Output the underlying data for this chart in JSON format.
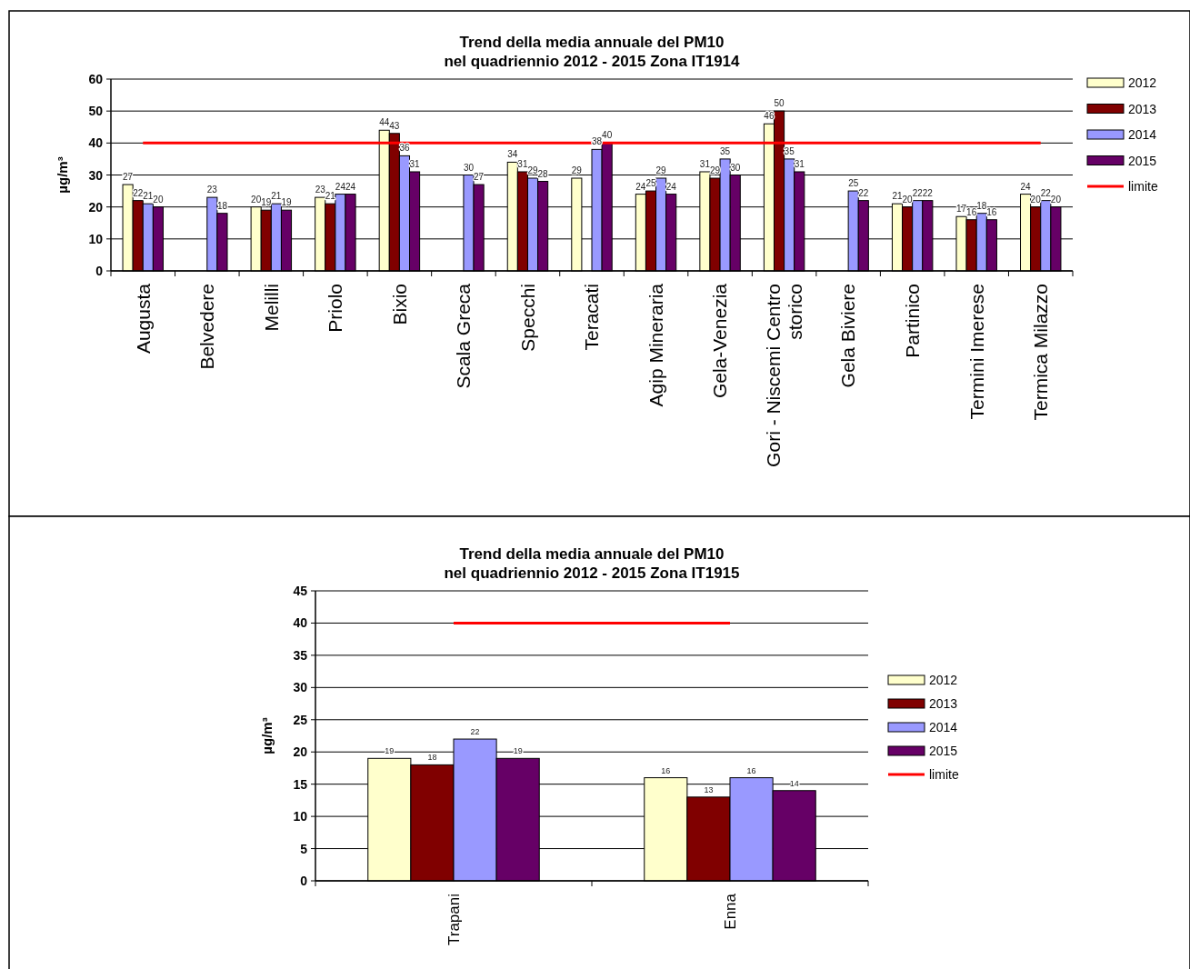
{
  "chart_data": [
    {
      "type": "bar",
      "title": "Trend della media annuale del PM10\nnel quadriennio 2012 - 2015 Zona IT1914",
      "ylabel": "µg/m³",
      "categories": [
        "Augusta",
        "Belvedere",
        "Melilli",
        "Priolo",
        "Bixio",
        "Scala Greca",
        "Specchi",
        "Teracati",
        "Agip Mineraria",
        "Gela-Venezia",
        "Gori - Niscemi Centro storico",
        "Gela Biviere",
        "Partinico",
        "Termini Imerese",
        "Termica Milazzo"
      ],
      "series": [
        {
          "name": "2012",
          "color": "#ffffcc",
          "values": [
            27,
            null,
            20,
            23,
            44,
            null,
            34,
            29,
            24,
            31,
            46,
            null,
            21,
            17,
            24
          ]
        },
        {
          "name": "2013",
          "color": "#800000",
          "values": [
            22,
            null,
            19,
            21,
            43,
            null,
            31,
            null,
            25,
            29,
            50,
            null,
            20,
            16,
            20
          ]
        },
        {
          "name": "2014",
          "color": "#9999ff",
          "values": [
            21,
            23,
            21,
            24,
            36,
            30,
            29,
            38,
            29,
            35,
            35,
            25,
            22,
            18,
            22
          ]
        },
        {
          "name": "2015",
          "color": "#660066",
          "values": [
            20,
            18,
            19,
            24,
            31,
            27,
            28,
            40,
            24,
            30,
            31,
            22,
            22,
            16,
            20
          ]
        }
      ],
      "ref_lines": [
        {
          "axis": "y",
          "value": 40,
          "label": "limite",
          "color": "#ff0000"
        }
      ],
      "ylim": [
        0,
        60
      ],
      "yticks": [
        0,
        10,
        20,
        30,
        40,
        50,
        60
      ],
      "grid": "y",
      "legend": "right",
      "data_labels": true
    },
    {
      "type": "bar",
      "title": "Trend della media annuale del PM10\nnel quadriennio 2012 - 2015 Zona IT1915",
      "ylabel": "µg/m³",
      "categories": [
        "Trapani",
        "Enna"
      ],
      "series": [
        {
          "name": "2012",
          "color": "#ffffcc",
          "values": [
            19,
            16
          ]
        },
        {
          "name": "2013",
          "color": "#800000",
          "values": [
            18,
            13
          ]
        },
        {
          "name": "2014",
          "color": "#9999ff",
          "values": [
            22,
            16
          ]
        },
        {
          "name": "2015",
          "color": "#660066",
          "values": [
            19,
            14
          ]
        }
      ],
      "ref_lines": [
        {
          "axis": "y",
          "value": 40,
          "label": "limite",
          "color": "#ff0000"
        }
      ],
      "ylim": [
        0,
        45
      ],
      "yticks": [
        0,
        5,
        10,
        15,
        20,
        25,
        30,
        35,
        40,
        45
      ],
      "grid": "y",
      "legend": "right",
      "data_labels": true
    }
  ]
}
